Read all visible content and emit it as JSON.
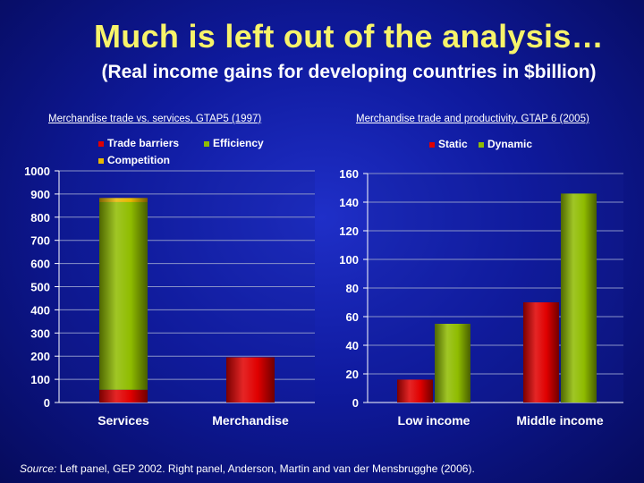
{
  "title": "Much is left out of the analysis…",
  "subtitle": "(Real income gains for developing countries in $billion)",
  "source": {
    "label": "Source:",
    "text": " Left panel, GEP 2002. Right panel, Anderson, Martin and van der Mensbrugghe (2006)."
  },
  "colors": {
    "red": "#e00000",
    "green": "#8fbc00",
    "yellow": "#e8b800",
    "title": "#f7f36a",
    "grid": "#8a93c8"
  },
  "chart_data": [
    {
      "type": "bar",
      "stacked": true,
      "title": "Merchandise trade vs. services, GTAP5 (1997)",
      "categories": [
        "Services",
        "Merchandise"
      ],
      "series": [
        {
          "name": "Trade barriers",
          "color": "#e00000",
          "values": [
            55,
            195
          ]
        },
        {
          "name": "Efficiency",
          "color": "#8fbc00",
          "values": [
            810,
            0
          ]
        },
        {
          "name": "Competition",
          "color": "#e8b800",
          "values": [
            18,
            0
          ]
        }
      ],
      "ylim": [
        0,
        1000
      ],
      "yticks": [
        "0",
        "100",
        "200",
        "300",
        "400",
        "500",
        "600",
        "700",
        "800",
        "900",
        "1000"
      ],
      "grid": true,
      "legend": "top"
    },
    {
      "type": "bar",
      "stacked": false,
      "title": "Merchandise trade and productivity, GTAP 6 (2005)",
      "categories": [
        "Low income",
        "Middle income"
      ],
      "series": [
        {
          "name": "Static",
          "color": "#e00000",
          "values": [
            16,
            70
          ]
        },
        {
          "name": "Dynamic",
          "color": "#8fbc00",
          "values": [
            55,
            146
          ]
        }
      ],
      "ylim": [
        0,
        160
      ],
      "yticks": [
        "0",
        "20",
        "40",
        "60",
        "80",
        "100",
        "120",
        "140",
        "160"
      ],
      "grid": true,
      "legend": "top"
    }
  ]
}
